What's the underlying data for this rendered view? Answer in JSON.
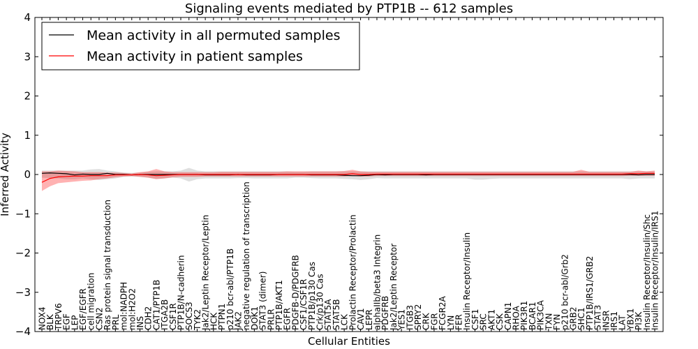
{
  "chart_data": {
    "type": "line",
    "title": "Signaling events mediated by PTP1B -- 612 samples",
    "xlabel": "Cellular Entities",
    "ylabel": "Inferred Activity",
    "ylim": [
      -4,
      4
    ],
    "yticks": [
      -4,
      -3,
      -2,
      -1,
      0,
      1,
      2,
      3,
      4
    ],
    "ytick_labels": [
      "−4",
      "−3",
      "−2",
      "−1",
      "0",
      "1",
      "2",
      "3",
      "4"
    ],
    "legend_position": "top-left",
    "categories": [
      "NOX4",
      "BLK",
      "TRPV6",
      "EGF",
      "LEP",
      "EGF/EGFR",
      "cell migration",
      "CSN2",
      "Ras protein signal transduction",
      "PRL",
      "mol:NADPH",
      "mol:H2O2",
      "INS",
      "CDH2",
      "CAT1/PTP1B",
      "ITGA2B",
      "CSF1R",
      "PTP1B/N-cadherin",
      "SOCS3",
      "TYK2",
      "Jak2/Leptin Receptor/Leptin",
      "HCK",
      "PTPN1",
      "p210 bcr-abl/PTP1B",
      "JAK2",
      "negative regulation of transcription",
      "DOK1",
      "STAT3 (dimer)",
      "PRLR",
      "PTP1B/AKT1",
      "EGFR",
      "PDGFB-D/PDGFRB",
      "CSF1/CSF1R",
      "PTP1B/p130 Cas",
      "Crk/p130 Cas",
      "STAT5A",
      "STAT5B",
      "LCK",
      "Prolactin Receptor/Prolactin",
      "CAV1",
      "LEPR",
      "alphaIIb/beta3 Integrin",
      "PDGFRB",
      "Jak2/Leptin Receptor",
      "YES1",
      "ITGB3",
      "SPRY2",
      "CRK",
      "FGR",
      "FCGR2A",
      "LYN",
      "FER",
      "Insulin Receptor/Insulin",
      "CSF1",
      "SRC",
      "AKT1",
      "CSK",
      "CAPN1",
      "RHOA",
      "PIK3R1",
      "BCAR1",
      "PIK3CA",
      "TXN",
      "FYN",
      "p210 bcr-abl/Grb2",
      "GRB2",
      "SHC1",
      "PTP1B/IRS1/GRB2",
      "STAT3",
      "INSR",
      "IRS1",
      "LAT",
      "YBX1",
      "PI3K",
      "Insulin Receptor/Insulin/Shc",
      "Insulin Receptor/Insulin/IRS1"
    ],
    "series": [
      {
        "name": "Mean activity in all permuted samples",
        "color": "#000000",
        "values": [
          0.03,
          0.04,
          0.03,
          0.02,
          -0.01,
          0.01,
          0.0,
          0.0,
          0.03,
          0.0,
          0.0,
          -0.01,
          0.0,
          0.0,
          0.0,
          0.0,
          0.0,
          0.0,
          0.0,
          0.0,
          -0.01,
          -0.01,
          -0.01,
          -0.01,
          0.0,
          -0.01,
          -0.01,
          -0.01,
          -0.01,
          0.0,
          0.0,
          0.0,
          0.0,
          -0.01,
          -0.01,
          -0.01,
          -0.01,
          -0.02,
          -0.03,
          -0.03,
          -0.02,
          0.0,
          -0.01,
          0.0,
          0.0,
          0.0,
          0.0,
          -0.01,
          0.0,
          0.0,
          0.0,
          0.0,
          0.0,
          0.0,
          0.0,
          0.0,
          0.0,
          0.0,
          0.0,
          0.0,
          0.0,
          0.0,
          0.0,
          0.0,
          0.0,
          0.0,
          0.0,
          0.0,
          0.0,
          0.0,
          0.0,
          0.0,
          0.0,
          -0.01,
          0.0,
          0.0
        ],
        "band": {
          "lower": [
            -0.08,
            -0.09,
            -0.1,
            -0.12,
            -0.12,
            -0.1,
            -0.12,
            -0.14,
            -0.12,
            -0.1,
            -0.06,
            -0.05,
            -0.06,
            -0.08,
            -0.11,
            -0.1,
            -0.08,
            -0.1,
            -0.18,
            -0.12,
            -0.1,
            -0.1,
            -0.1,
            -0.1,
            -0.09,
            -0.09,
            -0.1,
            -0.1,
            -0.1,
            -0.1,
            -0.1,
            -0.08,
            -0.08,
            -0.09,
            -0.1,
            -0.1,
            -0.1,
            -0.11,
            -0.12,
            -0.14,
            -0.12,
            -0.09,
            -0.1,
            -0.1,
            -0.1,
            -0.1,
            -0.1,
            -0.1,
            -0.1,
            -0.1,
            -0.1,
            -0.1,
            -0.1,
            -0.13,
            -0.13,
            -0.11,
            -0.1,
            -0.1,
            -0.1,
            -0.1,
            -0.1,
            -0.1,
            -0.1,
            -0.1,
            -0.1,
            -0.1,
            -0.1,
            -0.1,
            -0.1,
            -0.1,
            -0.1,
            -0.1,
            -0.12,
            -0.1,
            -0.1,
            -0.1
          ],
          "upper": [
            0.1,
            0.1,
            0.1,
            0.1,
            0.1,
            0.1,
            0.13,
            0.14,
            0.1,
            0.08,
            0.05,
            0.04,
            0.05,
            0.07,
            0.08,
            0.08,
            0.08,
            0.1,
            0.17,
            0.1,
            0.08,
            0.08,
            0.08,
            0.08,
            0.08,
            0.08,
            0.08,
            0.08,
            0.08,
            0.08,
            0.08,
            0.07,
            0.07,
            0.08,
            0.08,
            0.08,
            0.08,
            0.08,
            0.08,
            0.08,
            0.08,
            0.08,
            0.08,
            0.08,
            0.08,
            0.08,
            0.08,
            0.08,
            0.08,
            0.08,
            0.08,
            0.08,
            0.08,
            0.08,
            0.08,
            0.08,
            0.08,
            0.08,
            0.08,
            0.08,
            0.08,
            0.08,
            0.08,
            0.08,
            0.08,
            0.08,
            0.08,
            0.08,
            0.08,
            0.08,
            0.08,
            0.08,
            0.08,
            0.08,
            0.08,
            0.08
          ]
        }
      },
      {
        "name": "Mean activity in patient samples",
        "color": "#ff0000",
        "values": [
          -0.2,
          -0.1,
          -0.06,
          -0.05,
          -0.04,
          -0.04,
          -0.03,
          -0.03,
          -0.03,
          -0.01,
          -0.01,
          -0.01,
          0.0,
          -0.01,
          -0.03,
          -0.02,
          -0.01,
          0.0,
          0.0,
          0.0,
          0.0,
          0.0,
          0.0,
          0.0,
          0.0,
          0.0,
          0.0,
          0.0,
          0.0,
          0.0,
          0.0,
          0.0,
          0.0,
          0.0,
          0.0,
          0.0,
          0.0,
          0.0,
          0.02,
          0.0,
          0.0,
          0.01,
          0.01,
          0.01,
          0.01,
          0.01,
          0.01,
          0.01,
          0.01,
          0.01,
          0.01,
          0.01,
          0.01,
          0.01,
          0.01,
          0.01,
          0.01,
          0.01,
          0.01,
          0.01,
          0.01,
          0.01,
          0.01,
          0.01,
          0.01,
          0.01,
          0.01,
          0.01,
          0.01,
          0.01,
          0.01,
          0.01,
          0.02,
          0.02,
          0.03,
          0.03
        ],
        "band": {
          "lower": [
            -0.42,
            -0.3,
            -0.22,
            -0.2,
            -0.18,
            -0.16,
            -0.15,
            -0.12,
            -0.1,
            -0.07,
            -0.05,
            -0.04,
            -0.06,
            -0.08,
            -0.12,
            -0.1,
            -0.07,
            -0.06,
            -0.06,
            -0.06,
            -0.05,
            -0.05,
            -0.05,
            -0.05,
            -0.05,
            -0.05,
            -0.05,
            -0.05,
            -0.05,
            -0.05,
            -0.05,
            -0.05,
            -0.05,
            -0.05,
            -0.05,
            -0.05,
            -0.05,
            -0.05,
            -0.04,
            -0.05,
            -0.05,
            -0.04,
            -0.04,
            -0.04,
            -0.04,
            -0.04,
            -0.04,
            -0.04,
            -0.04,
            -0.04,
            -0.04,
            -0.04,
            -0.04,
            -0.04,
            -0.04,
            -0.04,
            -0.04,
            -0.04,
            -0.04,
            -0.04,
            -0.04,
            -0.04,
            -0.04,
            -0.04,
            -0.04,
            -0.04,
            -0.04,
            -0.04,
            -0.04,
            -0.04,
            -0.04,
            -0.04,
            -0.03,
            -0.03,
            -0.03,
            -0.03
          ],
          "upper": [
            0.08,
            0.08,
            0.1,
            0.09,
            0.08,
            0.06,
            0.06,
            0.06,
            0.05,
            0.05,
            0.04,
            0.03,
            0.06,
            0.08,
            0.14,
            0.08,
            0.06,
            0.06,
            0.06,
            0.06,
            0.06,
            0.06,
            0.07,
            0.07,
            0.07,
            0.07,
            0.07,
            0.07,
            0.07,
            0.07,
            0.08,
            0.08,
            0.08,
            0.08,
            0.08,
            0.08,
            0.08,
            0.09,
            0.12,
            0.08,
            0.07,
            0.07,
            0.07,
            0.07,
            0.07,
            0.07,
            0.07,
            0.07,
            0.07,
            0.07,
            0.07,
            0.07,
            0.07,
            0.07,
            0.07,
            0.07,
            0.07,
            0.07,
            0.07,
            0.07,
            0.07,
            0.07,
            0.07,
            0.07,
            0.07,
            0.07,
            0.12,
            0.07,
            0.07,
            0.07,
            0.07,
            0.07,
            0.07,
            0.1,
            0.08,
            0.1
          ]
        }
      }
    ]
  }
}
